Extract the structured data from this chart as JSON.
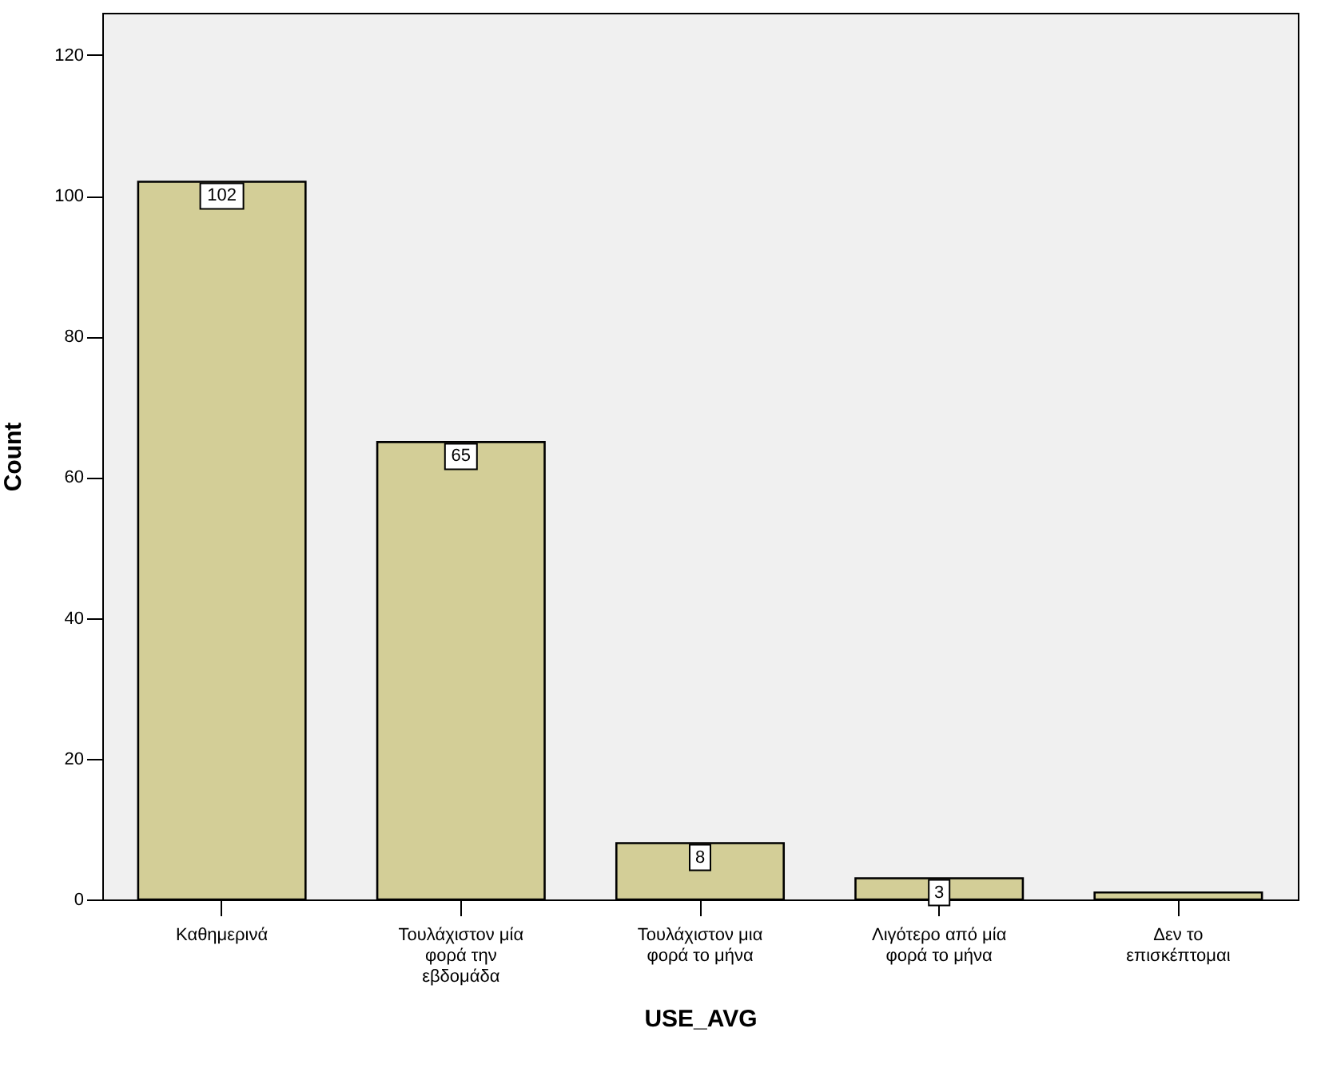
{
  "chart_data": {
    "type": "bar",
    "xlabel": "USE_AVG",
    "ylabel": "Count",
    "categories": [
      "Καθημερινά",
      "Τουλάχιστον μία φορά την εβδομάδα",
      "Τουλάχιστον μια φορά το μήνα",
      "Λιγότερο από μία φορά το μήνα",
      "Δεν το επισκέπτομαι"
    ],
    "values": [
      102,
      65,
      8,
      3,
      1
    ],
    "value_labels": [
      "102",
      "65",
      "8",
      "3",
      null
    ],
    "color": "#d3ce97",
    "ylim": [
      0,
      126
    ],
    "yticks": [
      0,
      20,
      40,
      60,
      80,
      100,
      120
    ],
    "grid": false
  }
}
